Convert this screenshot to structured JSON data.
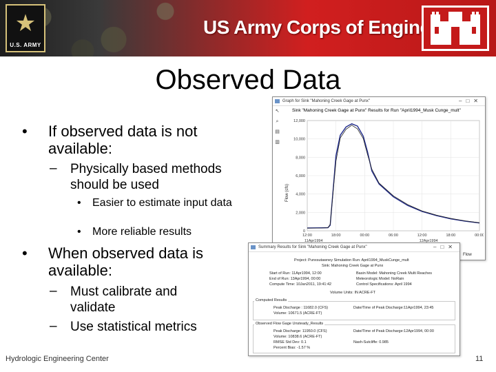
{
  "header": {
    "army_logo_text": "U.S. ARMY",
    "title": "US Army Corps of Engineers"
  },
  "slide": {
    "title": "Observed Data",
    "bullets": [
      {
        "level": 1,
        "text": "If observed data is not available:"
      },
      {
        "level": 2,
        "text": "Physically based methods should be used"
      },
      {
        "level": 3,
        "text": "Easier to estimate input data"
      },
      {
        "level": 3,
        "text": "More reliable results"
      },
      {
        "level": 1,
        "text": "When observed data is available:"
      },
      {
        "level": 2,
        "text": "Must calibrate and validate"
      },
      {
        "level": 2,
        "text": "Use statistical metrics"
      }
    ],
    "footer_left": "Hydrologic Engineering Center",
    "page_number": "11"
  },
  "graph_window": {
    "title": "Graph for Sink \"Mahoning Creek Gage at Punx\"",
    "plot_title": "Sink \"Mahoning Creek Gage at Punx\" Results for Run \"April1994_Musk Cunge_mult\"",
    "ylabel": "Flow (cfs)",
    "legend_partial": "Flow"
  },
  "chart_data": {
    "type": "line",
    "ylim": [
      0,
      12000
    ],
    "yticks": [
      "0",
      "2,000",
      "4,000",
      "6,000",
      "8,000",
      "10,000",
      "12,000"
    ],
    "xticks": [
      "12:00",
      "18:00",
      "00:00",
      "06:00",
      "12:00",
      "18:00",
      "00:00"
    ],
    "xdates": [
      "11Apr1994",
      "12Apr1994"
    ],
    "series": [
      {
        "name": "",
        "color": "#1f2a8c",
        "x": [
          0,
          0.5,
          0.72,
          0.8,
          1.0,
          1.15,
          1.35,
          1.55,
          1.75,
          1.95,
          2.1,
          2.25,
          2.5,
          3.0,
          3.5,
          4.0,
          4.5,
          5.0,
          5.5,
          6.0
        ],
        "y": [
          300,
          320,
          340,
          600,
          8200,
          10400,
          11300,
          11650,
          11400,
          10300,
          8600,
          6500,
          5100,
          3700,
          2750,
          2100,
          1650,
          1300,
          1050,
          850
        ]
      },
      {
        "name": "",
        "color": "#222222",
        "x": [
          0,
          0.5,
          0.72,
          0.8,
          1.0,
          1.15,
          1.35,
          1.55,
          1.75,
          1.95,
          2.1,
          2.25,
          2.5,
          3.0,
          3.5,
          4.0,
          4.5,
          5.0,
          5.5,
          6.0
        ],
        "y": [
          290,
          300,
          330,
          700,
          7600,
          10100,
          11050,
          11500,
          11100,
          10050,
          8300,
          6700,
          5200,
          3800,
          2850,
          2150,
          1700,
          1350,
          1080,
          880
        ]
      }
    ]
  },
  "summary_window": {
    "title": "Summary Results for Sink \"Mahoning Creek Gage at Punx\"",
    "project": "Project: Punxsutawney    Simulation Run: April1994_MuskCunge_mult",
    "sink": "Sink: Mahoning Creek Gage at Punx",
    "start": "Start of Run:  11Apr1994, 12:00",
    "end": "End of Run:  13Apr1994, 00:00",
    "compute": "Compute Time: 10Jan2011, 19:41:42",
    "basin": "Basin Model:   Mahoning Creek Multi Reaches",
    "met": "Meteorologic Model:  NoRain",
    "control": "Control Specifications: April 1994",
    "units": "Volume Units:  IN   ACRE-FT",
    "computed_label": "Computed Results",
    "peak": "Peak Discharge : 11682.0 (CFS)",
    "peak_date": "Date/Time of Peak Discharge:11Apr1994, 23:45",
    "volume": "Volume:       10671.5 (ACRE-FT)",
    "observed_label": "Observed Flow Gage Unsteady_Results",
    "obs_peak": "Peak Discharge: 11950.0 (CFS)",
    "obs_peak_date": "Date/Time of Peak Discharge:12Apr1994, 00:00",
    "obs_volume": "Volume:       10838.6 (ACRE-FT)",
    "rmse": "RMSE Std Dev:  0.1",
    "nash": "Nash-Sutcliffe:       0.985",
    "bias": "Percent Bias:    -1.57 %"
  }
}
